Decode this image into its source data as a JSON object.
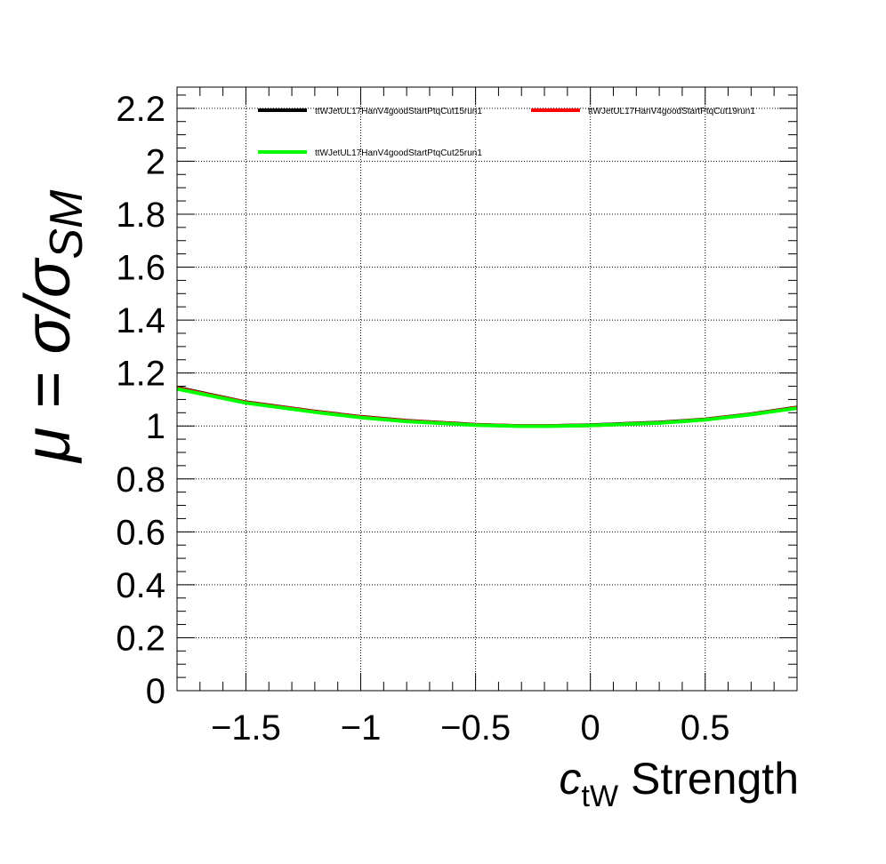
{
  "chart_data": {
    "type": "line",
    "xlabel": {
      "main": "c",
      "sub": "tW",
      "rest": " Strength"
    },
    "ylabel": {
      "main": "μ = σ/σ",
      "sub": "SM"
    },
    "xlim": [
      -1.8,
      0.9
    ],
    "ylim": [
      0,
      2.28
    ],
    "x_ticks": [
      {
        "value": -1.5,
        "label": "−1.5"
      },
      {
        "value": -1,
        "label": "−1"
      },
      {
        "value": -0.5,
        "label": "−0.5"
      },
      {
        "value": 0,
        "label": "0"
      },
      {
        "value": 0.5,
        "label": "0.5"
      }
    ],
    "y_ticks": [
      {
        "value": 0,
        "label": "0"
      },
      {
        "value": 0.2,
        "label": "0.2"
      },
      {
        "value": 0.4,
        "label": "0.4"
      },
      {
        "value": 0.6,
        "label": "0.6"
      },
      {
        "value": 0.8,
        "label": "0.8"
      },
      {
        "value": 1,
        "label": "1"
      },
      {
        "value": 1.2,
        "label": "1.2"
      },
      {
        "value": 1.4,
        "label": "1.4"
      },
      {
        "value": 1.6,
        "label": "1.6"
      },
      {
        "value": 1.8,
        "label": "1.8"
      },
      {
        "value": 2,
        "label": "2"
      },
      {
        "value": 2.2,
        "label": "2.2"
      }
    ],
    "grid": true,
    "legend_position": "top",
    "x": [
      -1.8,
      -1.5,
      -1.2,
      -1.0,
      -0.8,
      -0.5,
      -0.3,
      -0.2,
      0.0,
      0.3,
      0.5,
      0.7,
      0.9
    ],
    "series": [
      {
        "name": "ttWJetUL17HanV4goodStartPtqCut15run1",
        "color": "#000000",
        "values": [
          1.145,
          1.09,
          1.055,
          1.035,
          1.02,
          1.005,
          1.0,
          1.0,
          1.003,
          1.013,
          1.025,
          1.045,
          1.07
        ]
      },
      {
        "name": "ttWJetUL17HanV4goodStartPtqCut19run1",
        "color": "#ff0000",
        "values": [
          1.143,
          1.089,
          1.054,
          1.034,
          1.019,
          1.004,
          1.0,
          1.0,
          1.002,
          1.012,
          1.024,
          1.044,
          1.069
        ]
      },
      {
        "name": "ttWJetUL17HanV4goodStartPtqCut25run1",
        "color": "#00ff00",
        "values": [
          1.14,
          1.087,
          1.052,
          1.032,
          1.017,
          1.003,
          0.999,
          0.999,
          1.002,
          1.011,
          1.023,
          1.043,
          1.067
        ]
      }
    ]
  }
}
